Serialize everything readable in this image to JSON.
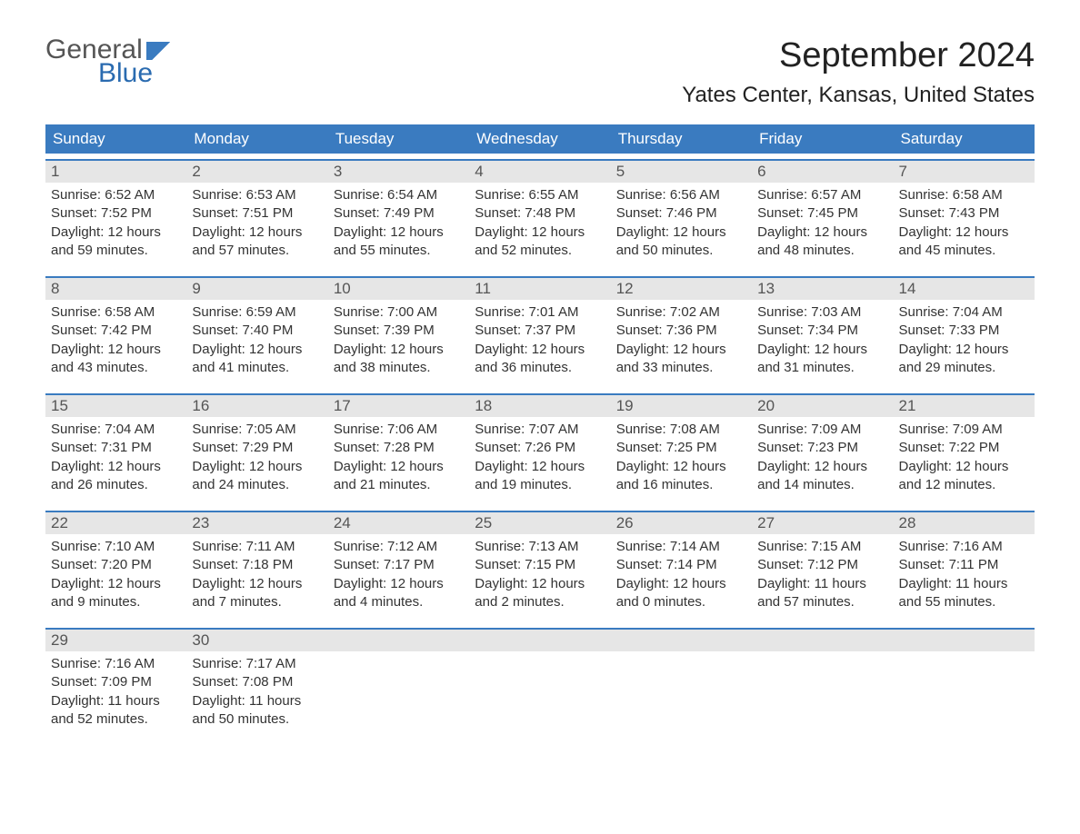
{
  "brand": {
    "word1": "General",
    "word2": "Blue"
  },
  "title": "September 2024",
  "location": "Yates Center, Kansas, United States",
  "colors": {
    "header_bg": "#3a7bc0",
    "header_text": "#ffffff",
    "date_bg": "#e6e6e6",
    "date_text": "#555555",
    "body_text": "#333333",
    "rule": "#3a7bc0",
    "page_bg": "#ffffff",
    "brand_blue": "#2a6bb0",
    "brand_gray": "#555555"
  },
  "typography": {
    "title_fontsize": 38,
    "location_fontsize": 24,
    "dayhead_fontsize": 17,
    "datenum_fontsize": 17,
    "body_fontsize": 15
  },
  "day_headers": [
    "Sunday",
    "Monday",
    "Tuesday",
    "Wednesday",
    "Thursday",
    "Friday",
    "Saturday"
  ],
  "weeks": [
    [
      {
        "date": "1",
        "sunrise": "Sunrise: 6:52 AM",
        "sunset": "Sunset: 7:52 PM",
        "daylight1": "Daylight: 12 hours",
        "daylight2": "and 59 minutes."
      },
      {
        "date": "2",
        "sunrise": "Sunrise: 6:53 AM",
        "sunset": "Sunset: 7:51 PM",
        "daylight1": "Daylight: 12 hours",
        "daylight2": "and 57 minutes."
      },
      {
        "date": "3",
        "sunrise": "Sunrise: 6:54 AM",
        "sunset": "Sunset: 7:49 PM",
        "daylight1": "Daylight: 12 hours",
        "daylight2": "and 55 minutes."
      },
      {
        "date": "4",
        "sunrise": "Sunrise: 6:55 AM",
        "sunset": "Sunset: 7:48 PM",
        "daylight1": "Daylight: 12 hours",
        "daylight2": "and 52 minutes."
      },
      {
        "date": "5",
        "sunrise": "Sunrise: 6:56 AM",
        "sunset": "Sunset: 7:46 PM",
        "daylight1": "Daylight: 12 hours",
        "daylight2": "and 50 minutes."
      },
      {
        "date": "6",
        "sunrise": "Sunrise: 6:57 AM",
        "sunset": "Sunset: 7:45 PM",
        "daylight1": "Daylight: 12 hours",
        "daylight2": "and 48 minutes."
      },
      {
        "date": "7",
        "sunrise": "Sunrise: 6:58 AM",
        "sunset": "Sunset: 7:43 PM",
        "daylight1": "Daylight: 12 hours",
        "daylight2": "and 45 minutes."
      }
    ],
    [
      {
        "date": "8",
        "sunrise": "Sunrise: 6:58 AM",
        "sunset": "Sunset: 7:42 PM",
        "daylight1": "Daylight: 12 hours",
        "daylight2": "and 43 minutes."
      },
      {
        "date": "9",
        "sunrise": "Sunrise: 6:59 AM",
        "sunset": "Sunset: 7:40 PM",
        "daylight1": "Daylight: 12 hours",
        "daylight2": "and 41 minutes."
      },
      {
        "date": "10",
        "sunrise": "Sunrise: 7:00 AM",
        "sunset": "Sunset: 7:39 PM",
        "daylight1": "Daylight: 12 hours",
        "daylight2": "and 38 minutes."
      },
      {
        "date": "11",
        "sunrise": "Sunrise: 7:01 AM",
        "sunset": "Sunset: 7:37 PM",
        "daylight1": "Daylight: 12 hours",
        "daylight2": "and 36 minutes."
      },
      {
        "date": "12",
        "sunrise": "Sunrise: 7:02 AM",
        "sunset": "Sunset: 7:36 PM",
        "daylight1": "Daylight: 12 hours",
        "daylight2": "and 33 minutes."
      },
      {
        "date": "13",
        "sunrise": "Sunrise: 7:03 AM",
        "sunset": "Sunset: 7:34 PM",
        "daylight1": "Daylight: 12 hours",
        "daylight2": "and 31 minutes."
      },
      {
        "date": "14",
        "sunrise": "Sunrise: 7:04 AM",
        "sunset": "Sunset: 7:33 PM",
        "daylight1": "Daylight: 12 hours",
        "daylight2": "and 29 minutes."
      }
    ],
    [
      {
        "date": "15",
        "sunrise": "Sunrise: 7:04 AM",
        "sunset": "Sunset: 7:31 PM",
        "daylight1": "Daylight: 12 hours",
        "daylight2": "and 26 minutes."
      },
      {
        "date": "16",
        "sunrise": "Sunrise: 7:05 AM",
        "sunset": "Sunset: 7:29 PM",
        "daylight1": "Daylight: 12 hours",
        "daylight2": "and 24 minutes."
      },
      {
        "date": "17",
        "sunrise": "Sunrise: 7:06 AM",
        "sunset": "Sunset: 7:28 PM",
        "daylight1": "Daylight: 12 hours",
        "daylight2": "and 21 minutes."
      },
      {
        "date": "18",
        "sunrise": "Sunrise: 7:07 AM",
        "sunset": "Sunset: 7:26 PM",
        "daylight1": "Daylight: 12 hours",
        "daylight2": "and 19 minutes."
      },
      {
        "date": "19",
        "sunrise": "Sunrise: 7:08 AM",
        "sunset": "Sunset: 7:25 PM",
        "daylight1": "Daylight: 12 hours",
        "daylight2": "and 16 minutes."
      },
      {
        "date": "20",
        "sunrise": "Sunrise: 7:09 AM",
        "sunset": "Sunset: 7:23 PM",
        "daylight1": "Daylight: 12 hours",
        "daylight2": "and 14 minutes."
      },
      {
        "date": "21",
        "sunrise": "Sunrise: 7:09 AM",
        "sunset": "Sunset: 7:22 PM",
        "daylight1": "Daylight: 12 hours",
        "daylight2": "and 12 minutes."
      }
    ],
    [
      {
        "date": "22",
        "sunrise": "Sunrise: 7:10 AM",
        "sunset": "Sunset: 7:20 PM",
        "daylight1": "Daylight: 12 hours",
        "daylight2": "and 9 minutes."
      },
      {
        "date": "23",
        "sunrise": "Sunrise: 7:11 AM",
        "sunset": "Sunset: 7:18 PM",
        "daylight1": "Daylight: 12 hours",
        "daylight2": "and 7 minutes."
      },
      {
        "date": "24",
        "sunrise": "Sunrise: 7:12 AM",
        "sunset": "Sunset: 7:17 PM",
        "daylight1": "Daylight: 12 hours",
        "daylight2": "and 4 minutes."
      },
      {
        "date": "25",
        "sunrise": "Sunrise: 7:13 AM",
        "sunset": "Sunset: 7:15 PM",
        "daylight1": "Daylight: 12 hours",
        "daylight2": "and 2 minutes."
      },
      {
        "date": "26",
        "sunrise": "Sunrise: 7:14 AM",
        "sunset": "Sunset: 7:14 PM",
        "daylight1": "Daylight: 12 hours",
        "daylight2": "and 0 minutes."
      },
      {
        "date": "27",
        "sunrise": "Sunrise: 7:15 AM",
        "sunset": "Sunset: 7:12 PM",
        "daylight1": "Daylight: 11 hours",
        "daylight2": "and 57 minutes."
      },
      {
        "date": "28",
        "sunrise": "Sunrise: 7:16 AM",
        "sunset": "Sunset: 7:11 PM",
        "daylight1": "Daylight: 11 hours",
        "daylight2": "and 55 minutes."
      }
    ],
    [
      {
        "date": "29",
        "sunrise": "Sunrise: 7:16 AM",
        "sunset": "Sunset: 7:09 PM",
        "daylight1": "Daylight: 11 hours",
        "daylight2": "and 52 minutes."
      },
      {
        "date": "30",
        "sunrise": "Sunrise: 7:17 AM",
        "sunset": "Sunset: 7:08 PM",
        "daylight1": "Daylight: 11 hours",
        "daylight2": "and 50 minutes."
      },
      {
        "empty": true
      },
      {
        "empty": true
      },
      {
        "empty": true
      },
      {
        "empty": true
      },
      {
        "empty": true
      }
    ]
  ]
}
